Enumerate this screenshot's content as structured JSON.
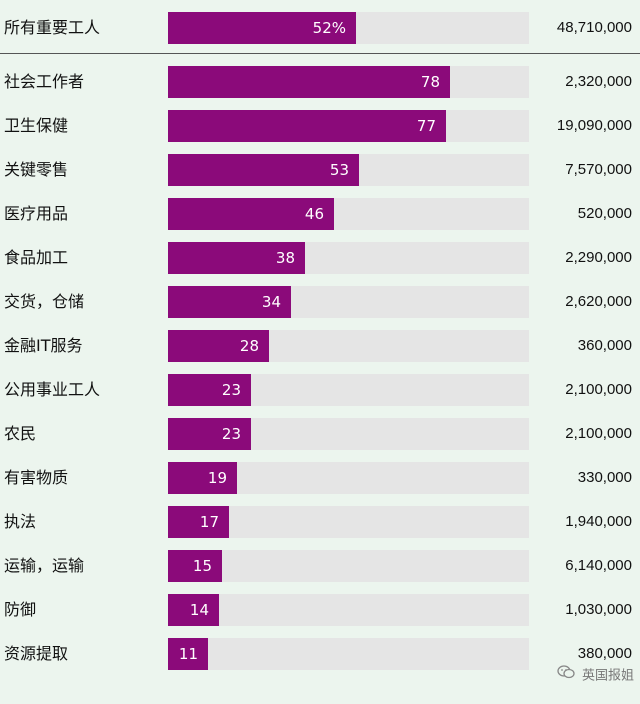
{
  "chart_data": {
    "type": "bar",
    "orientation": "horizontal",
    "xlim": [
      0,
      100
    ],
    "grid": false,
    "legend": "none",
    "bar_color": "#8b0a7a",
    "track_color": "#e5e5e5",
    "summary": {
      "category": "所有重要工人",
      "value": 52,
      "value_label": "52%",
      "count": "48,710,000"
    },
    "categories": [
      "社会工作者",
      "卫生保健",
      "关键零售",
      "医疗用品",
      "食品加工",
      "交货，仓储",
      "金融IT服务",
      "公用事业工人",
      "农民",
      "有害物质",
      "执法",
      "运输，运输",
      "防御",
      "资源提取"
    ],
    "values": [
      78,
      77,
      53,
      46,
      38,
      34,
      28,
      23,
      23,
      19,
      17,
      15,
      14,
      11
    ],
    "counts": [
      "2,320,000",
      "19,090,000",
      "7,570,000",
      "520,000",
      "2,290,000",
      "2,620,000",
      "360,000",
      "2,100,000",
      "2,100,000",
      "330,000",
      "1,940,000",
      "6,140,000",
      "1,030,000",
      "380,000"
    ]
  },
  "watermark": {
    "text": "英国报姐",
    "icon": "wechat-icon"
  }
}
